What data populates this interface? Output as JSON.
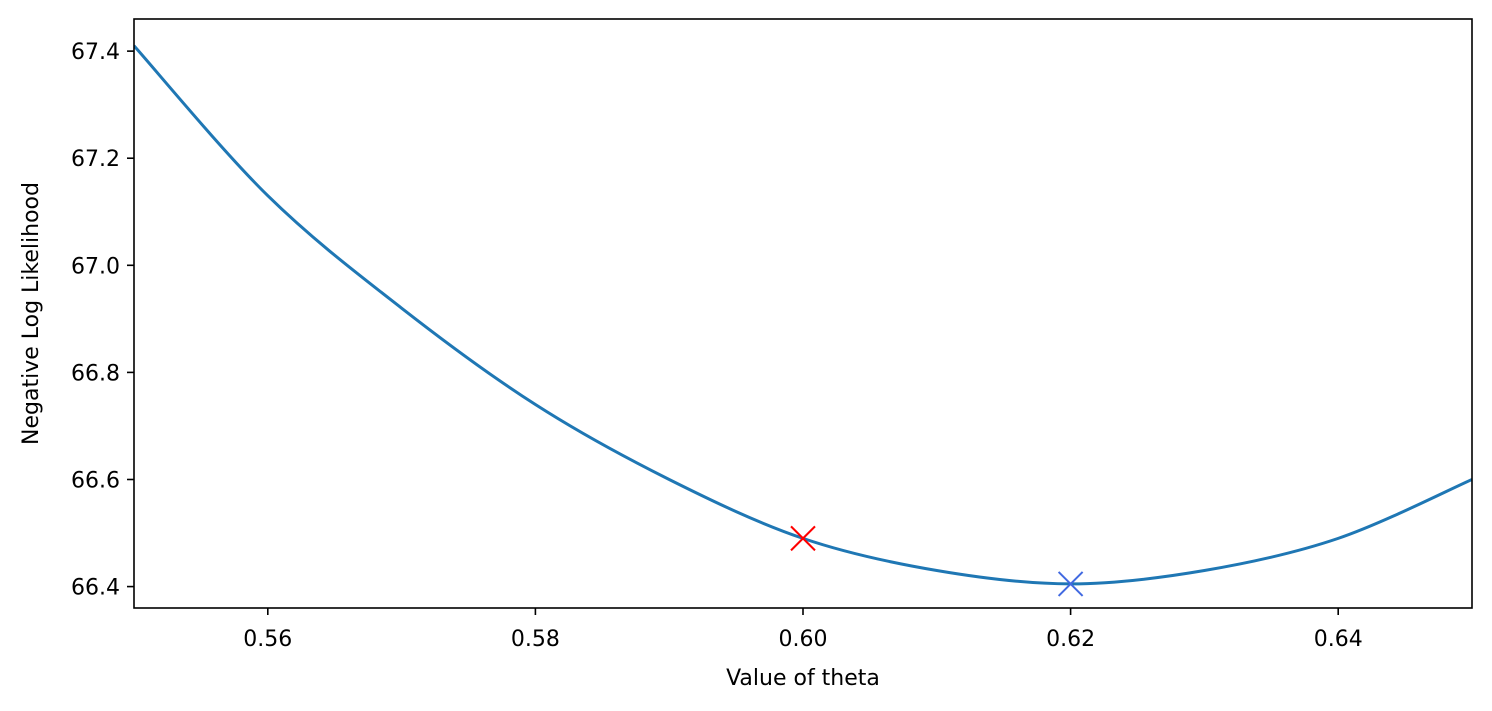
{
  "chart_data": {
    "type": "line",
    "title": "",
    "xlabel": "Value of theta",
    "ylabel": "Negative Log Likelihood",
    "xlim": [
      0.55,
      0.65
    ],
    "ylim": [
      66.36,
      67.46
    ],
    "x_ticks": [
      "0.56",
      "0.58",
      "0.60",
      "0.62",
      "0.64"
    ],
    "y_ticks": [
      "66.4",
      "66.6",
      "66.8",
      "67.0",
      "67.2",
      "67.4"
    ],
    "grid": false,
    "series": [
      {
        "color": "#1f77b4",
        "x": [
          0.55,
          0.56,
          0.57,
          0.58,
          0.59,
          0.6,
          0.61,
          0.62,
          0.63,
          0.64,
          0.65
        ],
        "y": [
          67.41,
          67.13,
          66.92,
          66.74,
          66.6,
          66.49,
          66.43,
          66.405,
          66.43,
          66.49,
          66.6
        ]
      }
    ],
    "markers": [
      {
        "x": 0.6,
        "y": 66.49,
        "shape": "x",
        "color": "#ff0000"
      },
      {
        "x": 0.62,
        "y": 66.405,
        "shape": "x",
        "color": "#4169e1"
      }
    ]
  }
}
